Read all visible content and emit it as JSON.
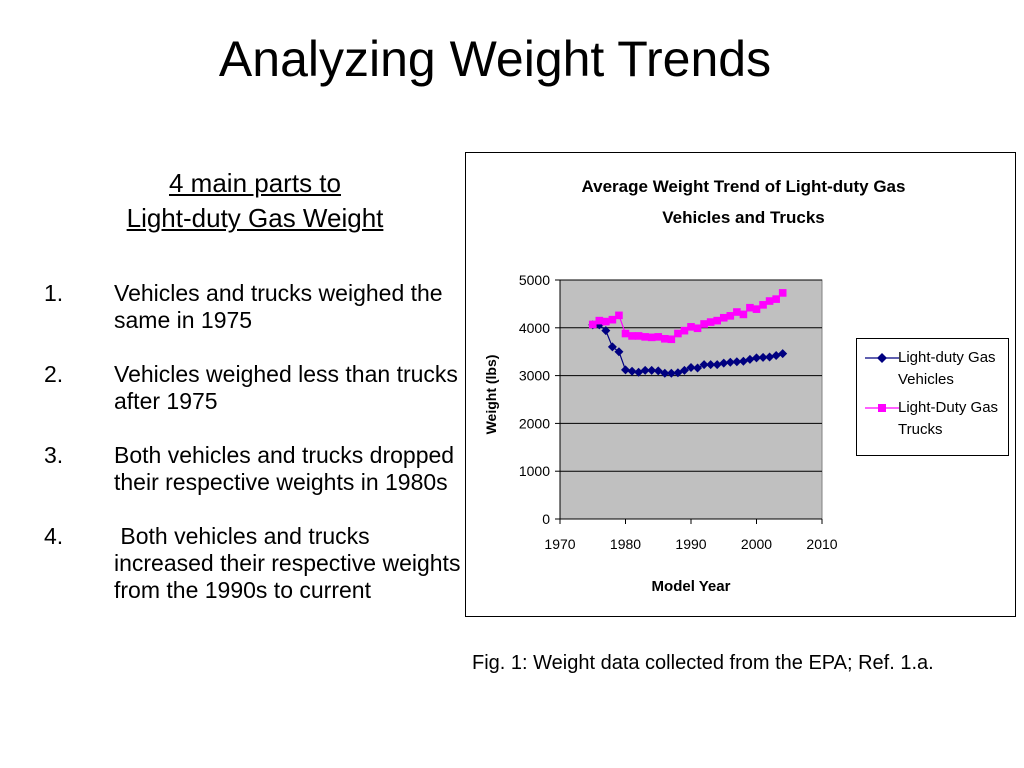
{
  "slide": {
    "title": "Analyzing Weight Trends",
    "subheading_line1": "4 main parts to",
    "subheading_line2": "Light-duty Gas Weight",
    "points": [
      {
        "num": "1.",
        "text": "Vehicles and trucks weighed the same in 1975"
      },
      {
        "num": "2.",
        "text": "Vehicles weighed less than trucks after 1975"
      },
      {
        "num": "3.",
        "text": "Both vehicles and trucks dropped their respective weights in 1980s"
      },
      {
        "num": "4.",
        "text": " Both vehicles and trucks increased their respective weights from the 1990s to current"
      }
    ],
    "caption": "Fig. 1: Weight data collected from the EPA; Ref. 1.a."
  },
  "chart_data": {
    "type": "line",
    "title_line1": "Average Weight Trend of Light-duty Gas",
    "title_line2": "Vehicles and Trucks",
    "xlabel": "Model Year",
    "ylabel": "Weight (lbs)",
    "xlim": [
      1970,
      2010
    ],
    "ylim": [
      0,
      5000
    ],
    "xticks": [
      "1970",
      "1980",
      "1990",
      "2000",
      "2010"
    ],
    "yticks": [
      "0",
      "1000",
      "2000",
      "3000",
      "4000",
      "5000"
    ],
    "plot_background": "#C0C0C0",
    "grid": "horizontal",
    "legend_position": "right",
    "x": [
      1975,
      1976,
      1977,
      1978,
      1979,
      1980,
      1981,
      1982,
      1983,
      1984,
      1985,
      1986,
      1987,
      1988,
      1989,
      1990,
      1991,
      1992,
      1993,
      1994,
      1995,
      1996,
      1997,
      1998,
      1999,
      2000,
      2001,
      2002,
      2003,
      2004
    ],
    "series": [
      {
        "name": "Light-duty Gas Vehicles",
        "color": "#000080",
        "marker": "diamond",
        "values": [
          4060,
          4060,
          3940,
          3600,
          3500,
          3120,
          3090,
          3070,
          3110,
          3110,
          3100,
          3050,
          3050,
          3060,
          3110,
          3170,
          3160,
          3230,
          3230,
          3230,
          3260,
          3280,
          3290,
          3300,
          3340,
          3370,
          3380,
          3390,
          3420,
          3460
        ]
      },
      {
        "name": "Light-Duty Gas Trucks",
        "color": "#FF00FF",
        "marker": "square",
        "values": [
          4070,
          4150,
          4130,
          4170,
          4260,
          3880,
          3830,
          3830,
          3810,
          3800,
          3810,
          3770,
          3760,
          3880,
          3940,
          4020,
          3990,
          4080,
          4120,
          4150,
          4210,
          4250,
          4330,
          4280,
          4420,
          4390,
          4480,
          4560,
          4600,
          4730
        ]
      }
    ]
  }
}
